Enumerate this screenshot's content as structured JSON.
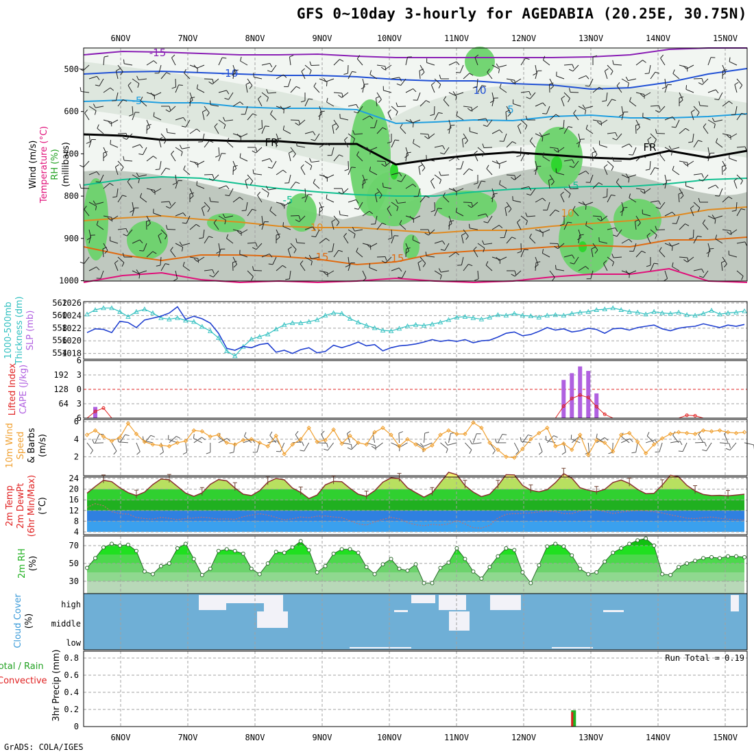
{
  "page": {
    "title": "GFS 0~10day 3-hourly for AGEDABIA (20.25E, 30.75N)",
    "footer": "GrADS: COLA/IGES"
  },
  "colors": {
    "templine": "#cc6a1f",
    "dewpt": "#8a5a5a",
    "cloud_bg": "#6fafd6",
    "rh_green": "#2fd52f",
    "sounding_gray": "#b9c3b9",
    "precip_green": "#20b020",
    "precip_red": "#e02020"
  },
  "chart_data": [
    {
      "type": "sounding",
      "days": [
        "6NOV",
        "7NOV",
        "8NOV",
        "9NOV",
        "10NOV",
        "11NOV",
        "12NOV",
        "13NOV",
        "14NOV",
        "15NOV"
      ],
      "ylabel_parts": [
        "Wind (m/s)",
        "Temperature (°C)",
        "RH (%)",
        "(millibars)"
      ],
      "yticks": [
        "500",
        "600",
        "700",
        "800",
        "900",
        "1000"
      ],
      "contour_labels": [
        {
          "text": "-15",
          "color": "#8a1fb5"
        },
        {
          "text": "-10",
          "color": "#1f4fd5"
        },
        {
          "text": "-5",
          "color": "#1f9fe0"
        },
        {
          "text": "FR",
          "color": "#000000"
        },
        {
          "text": "-5",
          "color": "#10c090"
        },
        {
          "text": "10",
          "color": "#e08a20"
        },
        {
          "text": "15",
          "color": "#e06a10"
        },
        {
          "text": "10",
          "color": "#1f4fd5"
        },
        {
          "text": "5",
          "color": "#1f9fe0"
        },
        {
          "text": "FR",
          "color": "#000000"
        },
        {
          "text": "5",
          "color": "#10c090"
        },
        {
          "text": "10",
          "color": "#e08a20"
        },
        {
          "text": "15",
          "color": "#e06a10"
        }
      ]
    },
    {
      "type": "line",
      "name": "thickness_slp",
      "ylabel_parts": [
        "1000-500mb",
        "Thickness (dm)",
        "SLP (mb)"
      ],
      "thickness_ticks": [
        "562",
        "560",
        "558",
        "556",
        "554"
      ],
      "slp_ticks": [
        "1026",
        "1024",
        "1022",
        "1020",
        "1018"
      ],
      "thickness": [
        560.2,
        560.9,
        561.2,
        561.2,
        560.6,
        559.8,
        560.6,
        561.0,
        560.4,
        559.6,
        559.4,
        559.6,
        559.2,
        559.0,
        558.2,
        557.5,
        556.4,
        554.3,
        553.5,
        555.0,
        556.2,
        556.6,
        557.0,
        557.8,
        558.5,
        558.8,
        558.8,
        559.0,
        559.3,
        560.0,
        560.4,
        560.3,
        559.5,
        558.9,
        558.4,
        558.0,
        557.6,
        557.5,
        557.9,
        558.3,
        558.5,
        558.4,
        558.6,
        558.9,
        559.3,
        559.7,
        559.8,
        559.6,
        559.4,
        559.7,
        560.1,
        560.0,
        560.3,
        560.0,
        559.9,
        559.7,
        560.0,
        560.1,
        560.0,
        560.3,
        560.5,
        560.6,
        560.9,
        561.0,
        561.2,
        560.9,
        560.6,
        560.5,
        560.2,
        560.6,
        560.4,
        560.3,
        560.5,
        560.1,
        560.0,
        560.3,
        560.8,
        560.2,
        560.4,
        560.5,
        560.7
      ],
      "slp": [
        1021.3,
        1021.9,
        1021.8,
        1021.3,
        1023.1,
        1022.9,
        1022.1,
        1023.3,
        1023.6,
        1023.9,
        1024.4,
        1025.4,
        1023.4,
        1023.9,
        1023.5,
        1022.8,
        1021.2,
        1018.8,
        1018.5,
        1019.1,
        1018.9,
        1019.4,
        1019.6,
        1018.2,
        1018.5,
        1018.0,
        1018.6,
        1018.9,
        1018.1,
        1018.3,
        1019.3,
        1018.9,
        1019.3,
        1019.8,
        1019.2,
        1019.4,
        1018.4,
        1018.9,
        1019.2,
        1019.3,
        1019.5,
        1019.8,
        1020.2,
        1019.9,
        1020.1,
        1019.9,
        1020.2,
        1019.7,
        1020.0,
        1020.1,
        1020.6,
        1021.2,
        1021.4,
        1020.8,
        1021.0,
        1021.5,
        1022.1,
        1021.7,
        1021.9,
        1021.4,
        1021.6,
        1022.0,
        1021.8,
        1021.2,
        1021.9,
        1022.0,
        1021.7,
        1022.1,
        1022.3,
        1022.5,
        1021.9,
        1021.6,
        1022.0,
        1022.2,
        1022.3,
        1022.7,
        1022.4,
        1022.1,
        1022.5,
        1022.3,
        1022.6
      ]
    },
    {
      "type": "bar",
      "name": "cape_li",
      "ylabel_parts": [
        "Lifted Index",
        "CAPE (J/kg)"
      ],
      "cape_ticks": [
        "192",
        "128",
        "64"
      ],
      "li_ticks": [
        "-6",
        "-3",
        "0",
        "3",
        "6"
      ],
      "cape": [
        0,
        0,
        0,
        0,
        0,
        0,
        0,
        0,
        0,
        0,
        0,
        0,
        0,
        0,
        0,
        0,
        0,
        0,
        0,
        0,
        0,
        0,
        0,
        0,
        0,
        0,
        0,
        0,
        0,
        0,
        0,
        0,
        0,
        0,
        0,
        0,
        0,
        0,
        0,
        0,
        0,
        0,
        0,
        0,
        0,
        0,
        0,
        0,
        0,
        0,
        0,
        0,
        0,
        0,
        0,
        0,
        0,
        0,
        170,
        200,
        230,
        210,
        110,
        0,
        0,
        0,
        0,
        0,
        0,
        0,
        0,
        0,
        0,
        0,
        0,
        0,
        0,
        0,
        0,
        0,
        0
      ],
      "li": [
        6,
        4.6,
        3.9,
        6,
        6,
        6,
        6,
        6,
        6,
        6,
        6,
        6,
        6,
        6,
        6,
        6,
        6,
        6,
        6,
        6,
        6,
        6,
        6,
        6,
        6,
        6,
        6,
        6,
        6,
        6,
        6,
        6,
        6,
        6,
        6,
        6,
        6,
        6,
        6,
        6,
        6,
        6,
        6,
        6,
        6,
        6,
        6,
        6,
        6,
        6,
        6,
        6,
        6,
        6,
        6,
        6,
        6,
        6,
        3.5,
        1.9,
        1.2,
        1.7,
        3.6,
        5.2,
        6,
        6,
        6,
        6,
        6,
        6,
        6,
        6,
        6,
        5.4,
        5.5,
        6,
        6,
        6,
        6,
        6,
        6
      ]
    },
    {
      "type": "line",
      "name": "wind10m",
      "ylabel_parts": [
        "10m Wind",
        "Speed",
        "& Barbs",
        "(m/s)"
      ],
      "yticks": [
        "6",
        "4",
        "2"
      ],
      "values": [
        4.5,
        5.0,
        4.3,
        3.8,
        4.2,
        5.8,
        4.6,
        3.7,
        3.4,
        3.3,
        3.2,
        3.6,
        3.8,
        5.0,
        4.9,
        4.3,
        4.5,
        3.6,
        3.4,
        3.9,
        4.0,
        3.6,
        3.2,
        4.4,
        2.3,
        3.4,
        4.0,
        5.3,
        3.7,
        3.9,
        5.1,
        3.5,
        4.4,
        3.6,
        3.4,
        4.8,
        5.3,
        4.5,
        3.2,
        4.0,
        3.4,
        2.8,
        3.3,
        4.5,
        5.0,
        4.6,
        4.6,
        5.9,
        5.3,
        3.6,
        2.8,
        2.0,
        1.9,
        2.9,
        4.0,
        4.7,
        5.3,
        3.2,
        3.5,
        2.8,
        4.5,
        2.2,
        3.9,
        3.6,
        2.6,
        4.5,
        4.7,
        3.7,
        2.4,
        3.4,
        4.1,
        4.6,
        4.8,
        4.7,
        4.6,
        5.0,
        4.9,
        5.0,
        4.8,
        4.7,
        4.8
      ]
    },
    {
      "type": "area",
      "name": "temp_dewpt",
      "ylabel_parts": [
        "2m Temp",
        "2m DewPt",
        "(6hr Min/Max)",
        "(°C)"
      ],
      "yticks": [
        "24",
        "20",
        "16",
        "12",
        "8",
        "4"
      ],
      "temp": [
        18.5,
        21.0,
        23.3,
        22.8,
        20.5,
        18.7,
        17.6,
        18.9,
        21.7,
        23.8,
        23.5,
        21.0,
        18.5,
        17.3,
        18.6,
        21.8,
        23.6,
        23.1,
        20.4,
        18.1,
        17.6,
        19.4,
        22.6,
        24.0,
        23.5,
        20.4,
        18.8,
        16.5,
        17.8,
        21.6,
        22.9,
        22.8,
        20.3,
        18.1,
        17.3,
        19.4,
        22.6,
        24.2,
        23.9,
        20.5,
        18.7,
        17.0,
        18.6,
        22.5,
        26.3,
        25.4,
        21.3,
        18.9,
        17.2,
        18.1,
        21.3,
        25.4,
        25.3,
        21.4,
        19.6,
        19.0,
        19.8,
        22.4,
        25.8,
        24.1,
        20.5,
        19.6,
        19.0,
        19.9,
        22.5,
        23.4,
        22.1,
        19.9,
        18.3,
        18.4,
        21.5,
        25.2,
        24.6,
        21.4,
        19.3,
        18.0,
        17.6,
        17.7,
        17.5,
        17.8,
        18.1
      ],
      "dewpt": [
        13.2,
        14.6,
        13.8,
        11.6,
        10.8,
        10.7,
        9.4,
        9.0,
        8.8,
        9.4,
        9.1,
        8.6,
        9.0,
        9.2,
        9.5,
        9.2,
        8.8,
        8.9,
        8.7,
        9.7,
        10.3,
        10.8,
        10.3,
        9.4,
        8.5,
        8.9,
        9.6,
        9.3,
        9.9,
        10.0,
        9.6,
        9.3,
        8.2,
        7.0,
        6.6,
        7.7,
        8.7,
        9.4,
        8.9,
        7.5,
        6.7,
        6.3,
        6.8,
        6.6,
        7.0,
        8.2,
        7.0,
        5.6,
        5.4,
        6.5,
        9.2,
        10.6,
        10.9,
        10.9,
        11.1,
        11.5,
        11.8,
        11.6,
        10.9,
        10.9,
        11.8,
        12.1,
        12.3,
        11.6,
        10.9,
        11.4,
        11.8,
        12.0,
        11.9,
        11.6,
        11.1,
        10.4,
        9.8,
        9.1,
        9.0,
        9.3,
        9.6,
        9.1,
        8.8,
        8.6,
        8.4
      ]
    },
    {
      "type": "area",
      "name": "rh2m",
      "ylabel_parts": [
        "2m RH",
        "(%)"
      ],
      "yticks": [
        "70",
        "50",
        "30"
      ],
      "values": [
        45,
        56,
        68,
        72,
        70,
        71,
        64,
        41,
        38,
        47,
        50,
        67,
        72,
        55,
        37,
        44,
        64,
        66,
        64,
        61,
        44,
        38,
        50,
        63,
        62,
        68,
        75,
        65,
        40,
        47,
        61,
        66,
        66,
        62,
        46,
        38,
        49,
        55,
        44,
        42,
        49,
        28,
        28,
        45,
        51,
        67,
        55,
        41,
        33,
        46,
        58,
        67,
        65,
        40,
        28,
        48,
        69,
        72,
        69,
        59,
        44,
        38,
        40,
        52,
        62,
        67,
        72,
        76,
        78,
        70,
        38,
        37,
        46,
        50,
        53,
        56,
        57,
        56,
        58,
        58,
        57
      ]
    },
    {
      "type": "heatmap",
      "name": "cloud_cover",
      "ylabel_parts": [
        "Cloud Cover",
        "(%)"
      ],
      "levels": [
        "high",
        "middle",
        "low"
      ]
    },
    {
      "type": "bar",
      "name": "precip",
      "ylabel_parts": [
        "Total / Rain",
        "Convective",
        "3hr Precip (mm)"
      ],
      "yticks": [
        "0.8",
        "0.6",
        "0.4",
        "0.2",
        "0"
      ],
      "run_total": "Run Total = 0.19",
      "total": [
        0,
        0,
        0,
        0,
        0,
        0,
        0,
        0,
        0,
        0,
        0,
        0,
        0,
        0,
        0,
        0,
        0,
        0,
        0,
        0,
        0,
        0,
        0,
        0,
        0,
        0,
        0,
        0,
        0,
        0,
        0,
        0,
        0,
        0,
        0,
        0,
        0,
        0,
        0,
        0,
        0,
        0,
        0,
        0,
        0,
        0,
        0,
        0,
        0,
        0,
        0,
        0,
        0,
        0,
        0,
        0,
        0,
        0,
        0,
        0.19,
        0,
        0,
        0,
        0,
        0,
        0,
        0,
        0,
        0,
        0,
        0,
        0,
        0,
        0,
        0,
        0,
        0,
        0,
        0,
        0,
        0
      ],
      "convective": [
        0,
        0,
        0,
        0,
        0,
        0,
        0,
        0,
        0,
        0,
        0,
        0,
        0,
        0,
        0,
        0,
        0,
        0,
        0,
        0,
        0,
        0,
        0,
        0,
        0,
        0,
        0,
        0,
        0,
        0,
        0,
        0,
        0,
        0,
        0,
        0,
        0,
        0,
        0,
        0,
        0,
        0,
        0,
        0,
        0,
        0,
        0,
        0,
        0,
        0,
        0,
        0,
        0,
        0,
        0,
        0,
        0,
        0,
        0,
        0.17,
        0,
        0,
        0,
        0,
        0,
        0,
        0,
        0,
        0,
        0,
        0,
        0,
        0,
        0,
        0,
        0,
        0,
        0,
        0,
        0,
        0
      ]
    }
  ]
}
